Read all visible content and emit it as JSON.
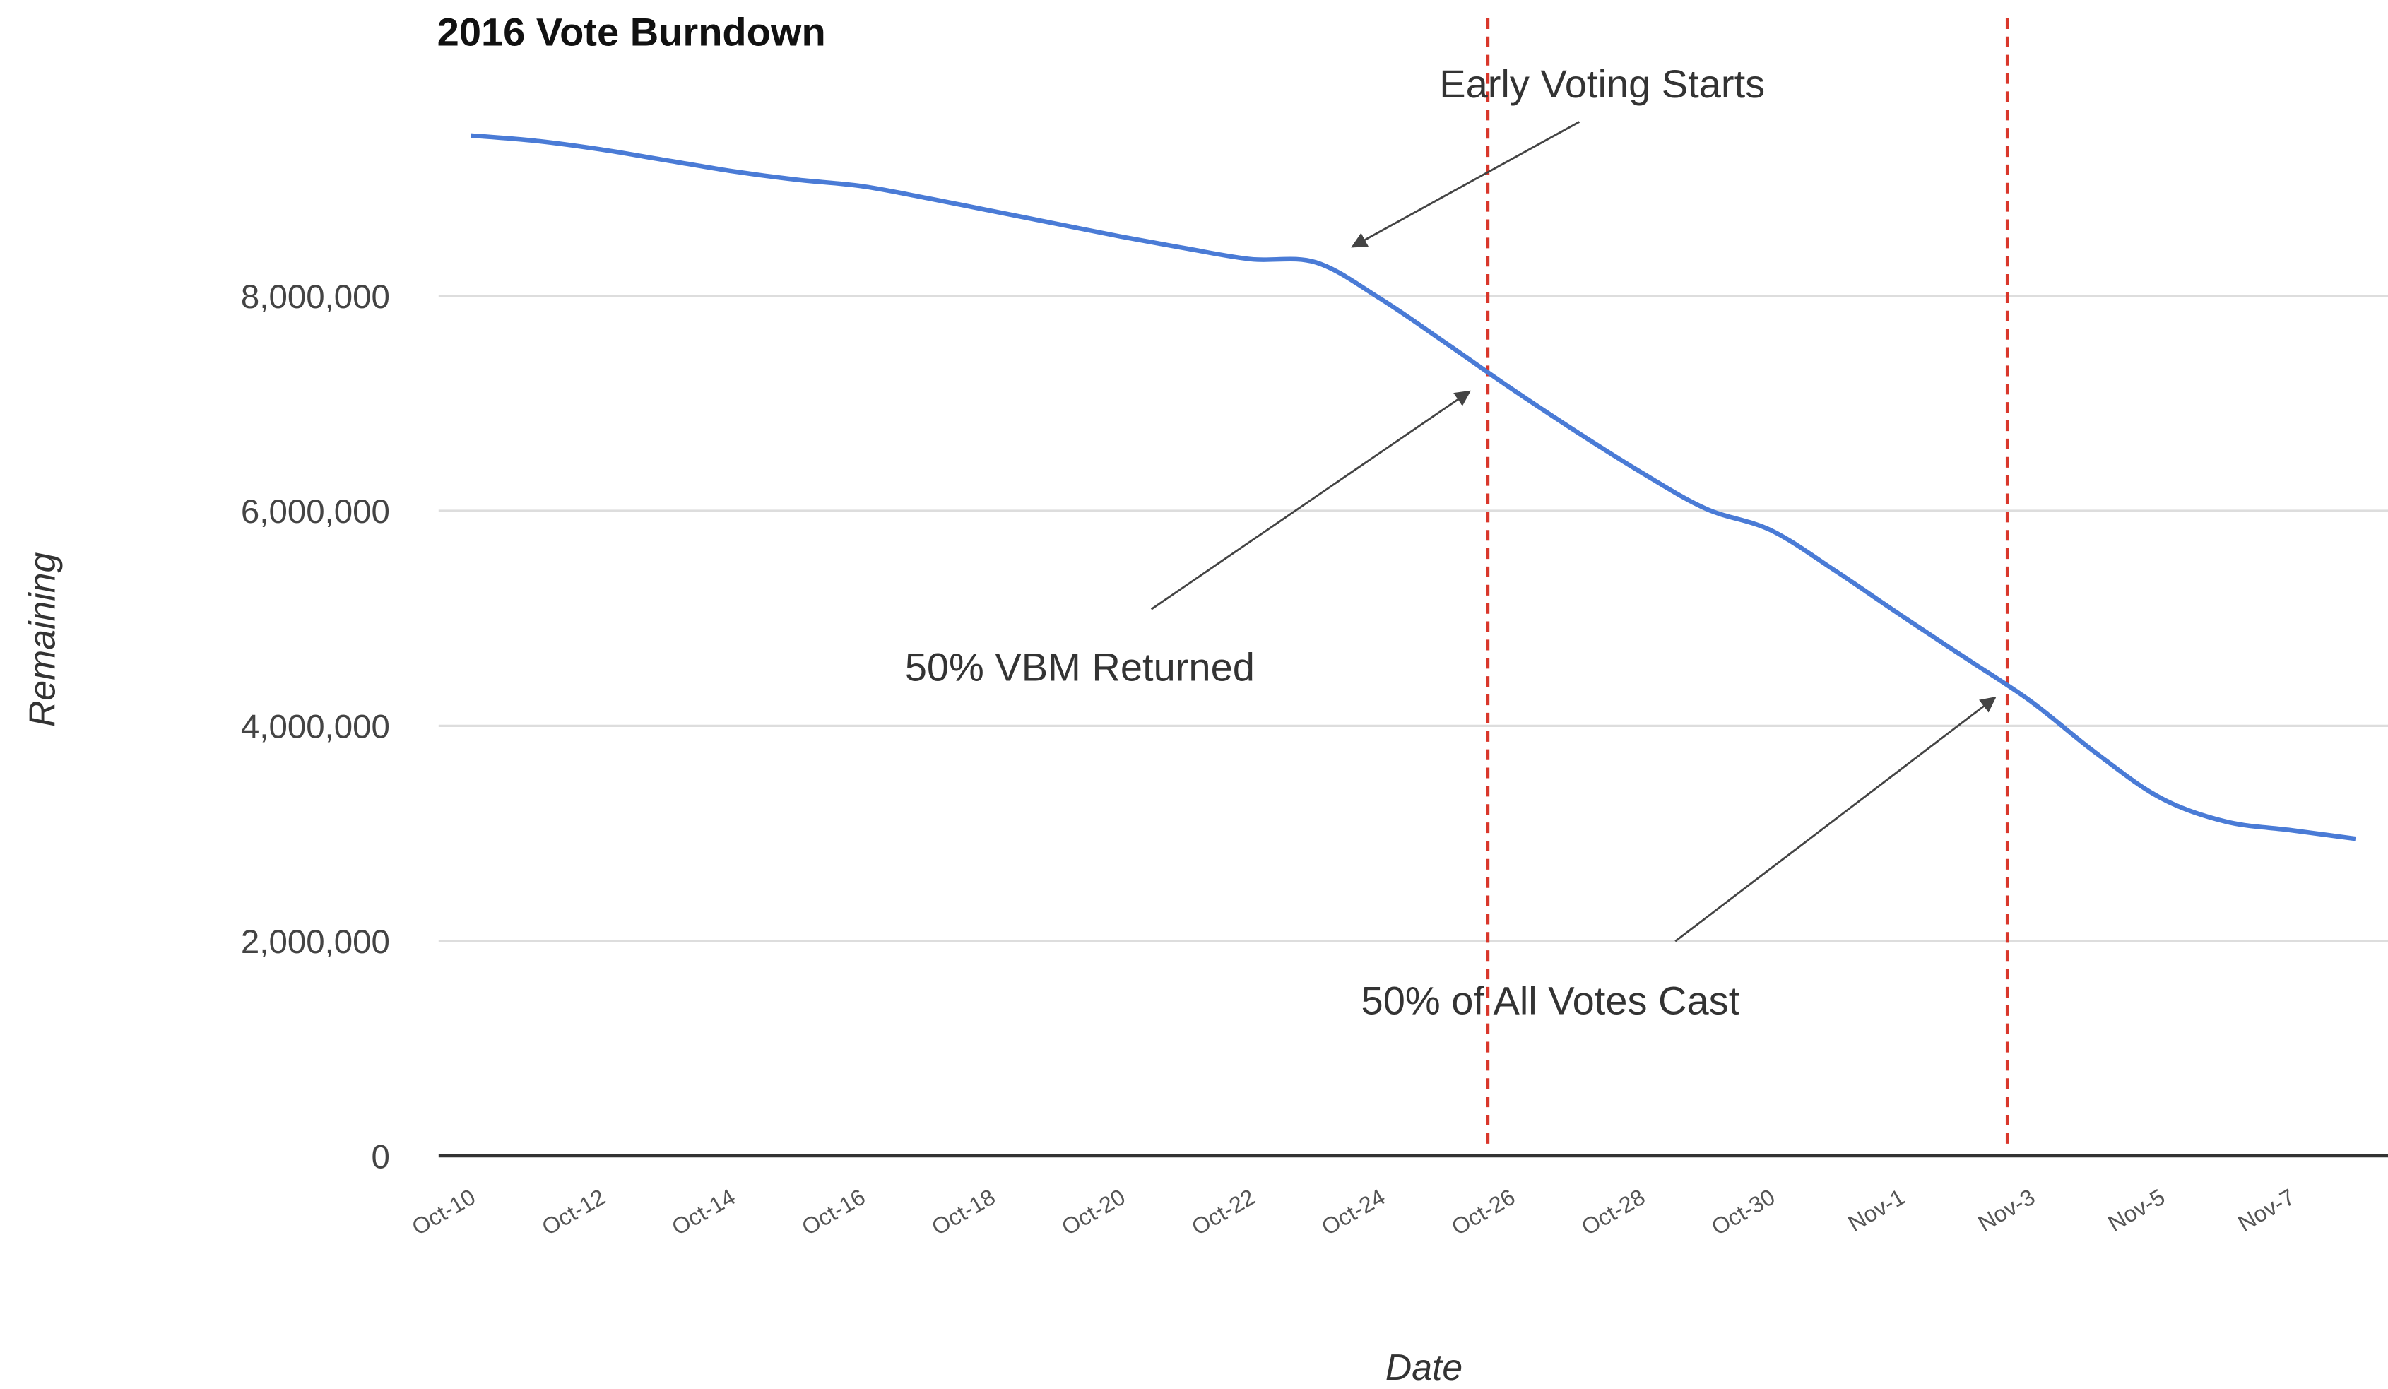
{
  "chart_data": {
    "type": "line",
    "title": "2016 Vote Burndown",
    "x_label": "Date",
    "y_label": "Remaining",
    "categories": [
      "Oct-10",
      null,
      "Oct-12",
      null,
      "Oct-14",
      null,
      "Oct-16",
      null,
      "Oct-18",
      null,
      "Oct-20",
      null,
      "Oct-22",
      null,
      "Oct-24",
      null,
      "Oct-26",
      null,
      "Oct-28",
      null,
      "Oct-30",
      null,
      "Nov-1",
      null,
      "Nov-3",
      null,
      "Nov-5",
      null,
      "Nov-7",
      null
    ],
    "series": [
      {
        "name": "Remaining",
        "color": "#4a7bd6",
        "values": [
          9490000,
          9440000,
          9360000,
          9260000,
          9160000,
          9080000,
          9020000,
          8910000,
          8790000,
          8670000,
          8550000,
          8440000,
          8340000,
          8310000,
          7970000,
          7560000,
          7140000,
          6740000,
          6360000,
          6020000,
          5820000,
          5440000,
          5030000,
          4630000,
          4230000,
          3750000,
          3330000,
          3110000,
          3030000,
          2950000
        ]
      }
    ],
    "ylim": [
      0,
      10750000
    ],
    "yticks": [
      0,
      {
        "value": 2000000,
        "label": "2,000,000"
      },
      {
        "value": 4000000,
        "label": "4,000,000"
      },
      {
        "value": 6000000,
        "label": "6,000,000"
      },
      {
        "value": 8000000,
        "label": "8,000,000"
      }
    ],
    "grid": true,
    "annotations": [
      {
        "text": "Early Voting Starts"
      },
      {
        "text": "50% VBM Returned"
      },
      {
        "text": "50% of All Votes Cast"
      }
    ],
    "reference_line_color": "#d9372b"
  }
}
